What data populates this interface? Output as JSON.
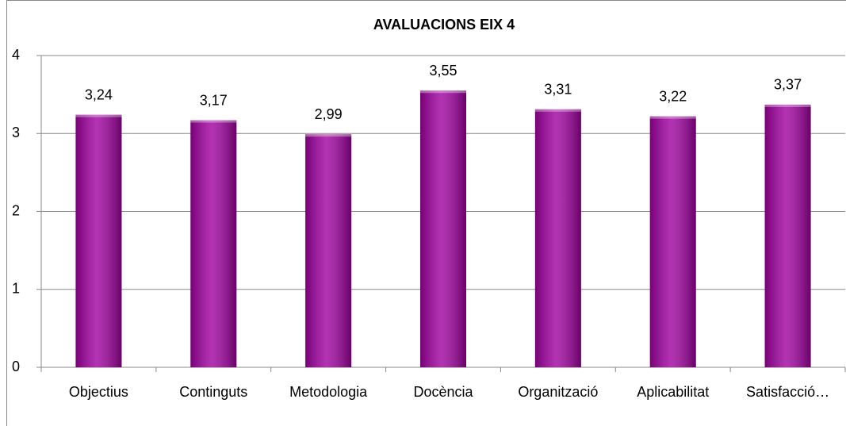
{
  "chart_data": {
    "type": "bar",
    "title": "AVALUACIONS EIX 4",
    "categories": [
      "Objectius",
      "Continguts",
      "Metodologia",
      "Docència",
      "Organització",
      "Aplicabilitat",
      "Satisfacció…"
    ],
    "values": [
      3.24,
      3.17,
      2.99,
      3.55,
      3.31,
      3.22,
      3.37
    ],
    "value_labels": [
      "3,24",
      "3,17",
      "2,99",
      "3,55",
      "3,31",
      "3,22",
      "3,37"
    ],
    "color": "#a000a0",
    "ylim": [
      0,
      4
    ],
    "yticks": [
      0,
      1,
      2,
      3,
      4
    ],
    "grid": true
  }
}
